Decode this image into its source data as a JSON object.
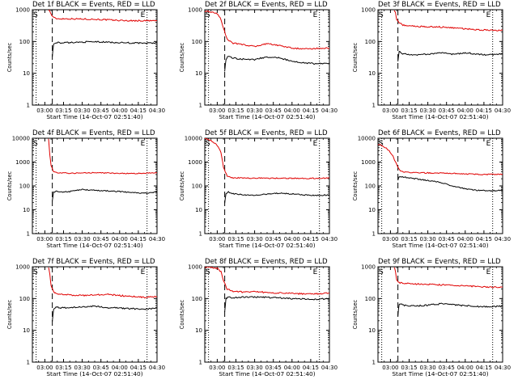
{
  "figure": {
    "xlabel": "Start Time (14-Oct-07 02:51:40)",
    "ylabel": "Counts/sec",
    "x_tick_labels": [
      "03:00",
      "03:15",
      "03:30",
      "03:45",
      "04:00",
      "04:15",
      "04:30"
    ],
    "y_tick_labels": [
      "1",
      "10",
      "100",
      "1000",
      "10000"
    ],
    "marker_labels": [
      "S",
      "E"
    ],
    "colors": {
      "events": "#000000",
      "lld": "#e00000",
      "axes": "#000000",
      "background": "#ffffff"
    }
  },
  "chart_data": [
    {
      "type": "line",
      "title": "Det 1f BLACK = Events, RED = LLD",
      "xlabel": "Start Time (14-Oct-07 02:51:40)",
      "ylabel": "Counts/sec",
      "x_unit": "minutes after 03:00",
      "xlim": [
        -10,
        90
      ],
      "ylim": [
        1,
        1000
      ],
      "y_scale": "log",
      "vlines_dotted": [
        -7,
        82
      ],
      "vlines_dashed": [
        6
      ],
      "series": [
        {
          "name": "LLD",
          "color": "#e00000",
          "x": [
            3,
            4,
            5,
            7,
            10,
            20,
            30,
            40,
            50,
            60,
            70,
            80,
            90
          ],
          "y": [
            1000,
            900,
            720,
            560,
            520,
            520,
            510,
            500,
            480,
            460,
            450,
            450,
            450
          ]
        },
        {
          "name": "Events",
          "color": "#000000",
          "x": [
            6,
            7,
            9,
            12,
            20,
            30,
            40,
            50,
            60,
            70,
            80,
            90
          ],
          "y": [
            35,
            80,
            95,
            90,
            92,
            96,
            98,
            95,
            92,
            90,
            88,
            90
          ]
        }
      ]
    },
    {
      "type": "line",
      "title": "Det 2f BLACK = Events, RED = LLD",
      "xlabel": "Start Time (14-Oct-07 02:51:40)",
      "ylabel": "Counts/sec",
      "x_unit": "minutes after 03:00",
      "xlim": [
        -10,
        90
      ],
      "ylim": [
        1,
        1000
      ],
      "y_scale": "log",
      "vlines_dotted": [
        -7,
        82
      ],
      "vlines_dashed": [
        6
      ],
      "series": [
        {
          "name": "LLD",
          "color": "#e00000",
          "x": [
            -10,
            -5,
            0,
            3,
            5,
            8,
            12,
            20,
            30,
            40,
            50,
            60,
            70,
            80,
            90
          ],
          "y": [
            900,
            850,
            750,
            500,
            250,
            120,
            90,
            80,
            70,
            85,
            75,
            62,
            58,
            60,
            62
          ]
        },
        {
          "name": "Events",
          "color": "#000000",
          "x": [
            6,
            7,
            9,
            12,
            20,
            30,
            40,
            50,
            60,
            70,
            80,
            90
          ],
          "y": [
            12,
            28,
            35,
            30,
            28,
            27,
            33,
            30,
            24,
            21,
            20,
            21
          ]
        }
      ]
    },
    {
      "type": "line",
      "title": "Det 3f BLACK = Events, RED = LLD",
      "xlabel": "Start Time (14-Oct-07 02:51:40)",
      "ylabel": "Counts/sec",
      "x_unit": "minutes after 03:00",
      "xlim": [
        -10,
        90
      ],
      "ylim": [
        1,
        1000
      ],
      "y_scale": "log",
      "vlines_dotted": [
        -7,
        82
      ],
      "vlines_dashed": [
        6
      ],
      "series": [
        {
          "name": "LLD",
          "color": "#e00000",
          "x": [
            3,
            4,
            5,
            7,
            10,
            20,
            30,
            40,
            50,
            60,
            70,
            80,
            90
          ],
          "y": [
            1000,
            800,
            500,
            380,
            330,
            300,
            290,
            285,
            270,
            250,
            235,
            225,
            225
          ]
        },
        {
          "name": "Events",
          "color": "#000000",
          "x": [
            6,
            7,
            9,
            12,
            20,
            30,
            40,
            50,
            60,
            70,
            80,
            90
          ],
          "y": [
            25,
            50,
            42,
            40,
            38,
            40,
            44,
            40,
            44,
            40,
            38,
            42
          ]
        }
      ]
    },
    {
      "type": "line",
      "title": "Det 4f BLACK = Events, RED = LLD",
      "xlabel": "Start Time (14-Oct-07 02:51:40)",
      "ylabel": "Counts/sec",
      "x_unit": "minutes after 03:00",
      "xlim": [
        -10,
        90
      ],
      "ylim": [
        1,
        10000
      ],
      "y_scale": "log",
      "vlines_dotted": [
        -7,
        82
      ],
      "vlines_dashed": [
        6
      ],
      "series": [
        {
          "name": "LLD",
          "color": "#e00000",
          "x": [
            3,
            4,
            5,
            7,
            10,
            20,
            30,
            40,
            50,
            60,
            70,
            80,
            90
          ],
          "y": [
            10000,
            2000,
            700,
            400,
            350,
            340,
            350,
            360,
            350,
            340,
            330,
            340,
            360
          ]
        },
        {
          "name": "Events",
          "color": "#000000",
          "x": [
            6,
            7,
            9,
            12,
            20,
            30,
            40,
            50,
            60,
            70,
            80,
            90
          ],
          "y": [
            25,
            55,
            60,
            55,
            58,
            70,
            65,
            62,
            58,
            52,
            50,
            55
          ]
        }
      ]
    },
    {
      "type": "line",
      "title": "Det 5f BLACK = Events, RED = LLD",
      "xlabel": "Start Time (14-Oct-07 02:51:40)",
      "ylabel": "Counts/sec",
      "x_unit": "minutes after 03:00",
      "xlim": [
        -10,
        90
      ],
      "ylim": [
        1,
        10000
      ],
      "y_scale": "log",
      "vlines_dotted": [
        -7,
        82
      ],
      "vlines_dashed": [
        6
      ],
      "series": [
        {
          "name": "LLD",
          "color": "#e00000",
          "x": [
            -10,
            -5,
            0,
            3,
            5,
            8,
            12,
            20,
            30,
            40,
            50,
            60,
            70,
            80,
            90
          ],
          "y": [
            10000,
            8000,
            5000,
            2500,
            600,
            260,
            220,
            215,
            210,
            212,
            210,
            208,
            205,
            210,
            215
          ]
        },
        {
          "name": "Events",
          "color": "#000000",
          "x": [
            6,
            7,
            9,
            12,
            20,
            30,
            40,
            50,
            60,
            70,
            80,
            90
          ],
          "y": [
            20,
            45,
            55,
            48,
            42,
            40,
            45,
            50,
            46,
            42,
            40,
            42
          ]
        }
      ]
    },
    {
      "type": "line",
      "title": "Det 6f BLACK = Events, RED = LLD",
      "xlabel": "Start Time (14-Oct-07 02:51:40)",
      "ylabel": "Counts/sec",
      "x_unit": "minutes after 03:00",
      "xlim": [
        -10,
        90
      ],
      "ylim": [
        1,
        10000
      ],
      "y_scale": "log",
      "vlines_dotted": [
        -7,
        82
      ],
      "vlines_dashed": [
        6
      ],
      "series": [
        {
          "name": "LLD",
          "color": "#e00000",
          "x": [
            -10,
            -7,
            -4,
            -1,
            2,
            4,
            6,
            8,
            12,
            20,
            30,
            40,
            50,
            60,
            70,
            80,
            90
          ],
          "y": [
            5500,
            5000,
            4000,
            3000,
            1800,
            1000,
            600,
            420,
            380,
            360,
            350,
            345,
            335,
            320,
            310,
            300,
            310
          ]
        },
        {
          "name": "Events",
          "color": "#000000",
          "x": [
            6,
            7,
            9,
            12,
            20,
            30,
            40,
            50,
            60,
            70,
            80,
            90
          ],
          "y": [
            180,
            250,
            240,
            230,
            200,
            170,
            140,
            100,
            75,
            65,
            62,
            66
          ]
        }
      ]
    },
    {
      "type": "line",
      "title": "Det 7f BLACK = Events, RED = LLD",
      "xlabel": "Start Time (14-Oct-07 02:51:40)",
      "ylabel": "Counts/sec",
      "x_unit": "minutes after 03:00",
      "xlim": [
        -10,
        90
      ],
      "ylim": [
        1,
        1000
      ],
      "y_scale": "log",
      "vlines_dotted": [
        -7,
        82
      ],
      "vlines_dashed": [
        6
      ],
      "series": [
        {
          "name": "LLD",
          "color": "#e00000",
          "x": [
            3,
            4,
            5,
            7,
            10,
            20,
            30,
            40,
            50,
            60,
            70,
            80,
            90
          ],
          "y": [
            1000,
            600,
            250,
            160,
            140,
            130,
            125,
            130,
            135,
            125,
            115,
            110,
            115
          ]
        },
        {
          "name": "Events",
          "color": "#000000",
          "x": [
            6,
            7,
            9,
            12,
            20,
            30,
            40,
            50,
            60,
            70,
            80,
            90
          ],
          "y": [
            20,
            45,
            55,
            50,
            52,
            55,
            58,
            52,
            50,
            48,
            46,
            50
          ]
        }
      ]
    },
    {
      "type": "line",
      "title": "Det 8f BLACK = Events, RED = LLD",
      "xlabel": "Start Time (14-Oct-07 02:51:40)",
      "ylabel": "Counts/sec",
      "x_unit": "minutes after 03:00",
      "xlim": [
        -10,
        90
      ],
      "ylim": [
        1,
        1000
      ],
      "y_scale": "log",
      "vlines_dotted": [
        -7,
        82
      ],
      "vlines_dashed": [
        6
      ],
      "series": [
        {
          "name": "LLD",
          "color": "#e00000",
          "x": [
            -10,
            -5,
            0,
            3,
            5,
            8,
            12,
            20,
            30,
            40,
            50,
            60,
            70,
            80,
            90
          ],
          "y": [
            1000,
            950,
            900,
            700,
            350,
            200,
            170,
            160,
            165,
            155,
            150,
            145,
            140,
            140,
            150
          ]
        },
        {
          "name": "Events",
          "color": "#000000",
          "x": [
            6,
            7,
            9,
            12,
            20,
            30,
            40,
            50,
            60,
            70,
            80,
            90
          ],
          "y": [
            40,
            100,
            110,
            105,
            110,
            112,
            108,
            105,
            100,
            98,
            95,
            100
          ]
        }
      ]
    },
    {
      "type": "line",
      "title": "Det 9f BLACK = Events, RED = LLD",
      "xlabel": "Start Time (14-Oct-07 02:51:40)",
      "ylabel": "Counts/sec",
      "x_unit": "minutes after 03:00",
      "xlim": [
        -10,
        90
      ],
      "ylim": [
        1,
        1000
      ],
      "y_scale": "log",
      "vlines_dotted": [
        -7,
        82
      ],
      "vlines_dashed": [
        6
      ],
      "series": [
        {
          "name": "LLD",
          "color": "#e00000",
          "x": [
            3,
            4,
            5,
            7,
            10,
            20,
            30,
            40,
            50,
            60,
            70,
            80,
            90
          ],
          "y": [
            1000,
            700,
            400,
            320,
            300,
            290,
            280,
            270,
            260,
            250,
            240,
            230,
            230
          ]
        },
        {
          "name": "Events",
          "color": "#000000",
          "x": [
            6,
            7,
            9,
            12,
            20,
            30,
            40,
            50,
            60,
            70,
            80,
            90
          ],
          "y": [
            30,
            68,
            65,
            60,
            58,
            62,
            68,
            64,
            60,
            56,
            54,
            58
          ]
        }
      ]
    }
  ]
}
